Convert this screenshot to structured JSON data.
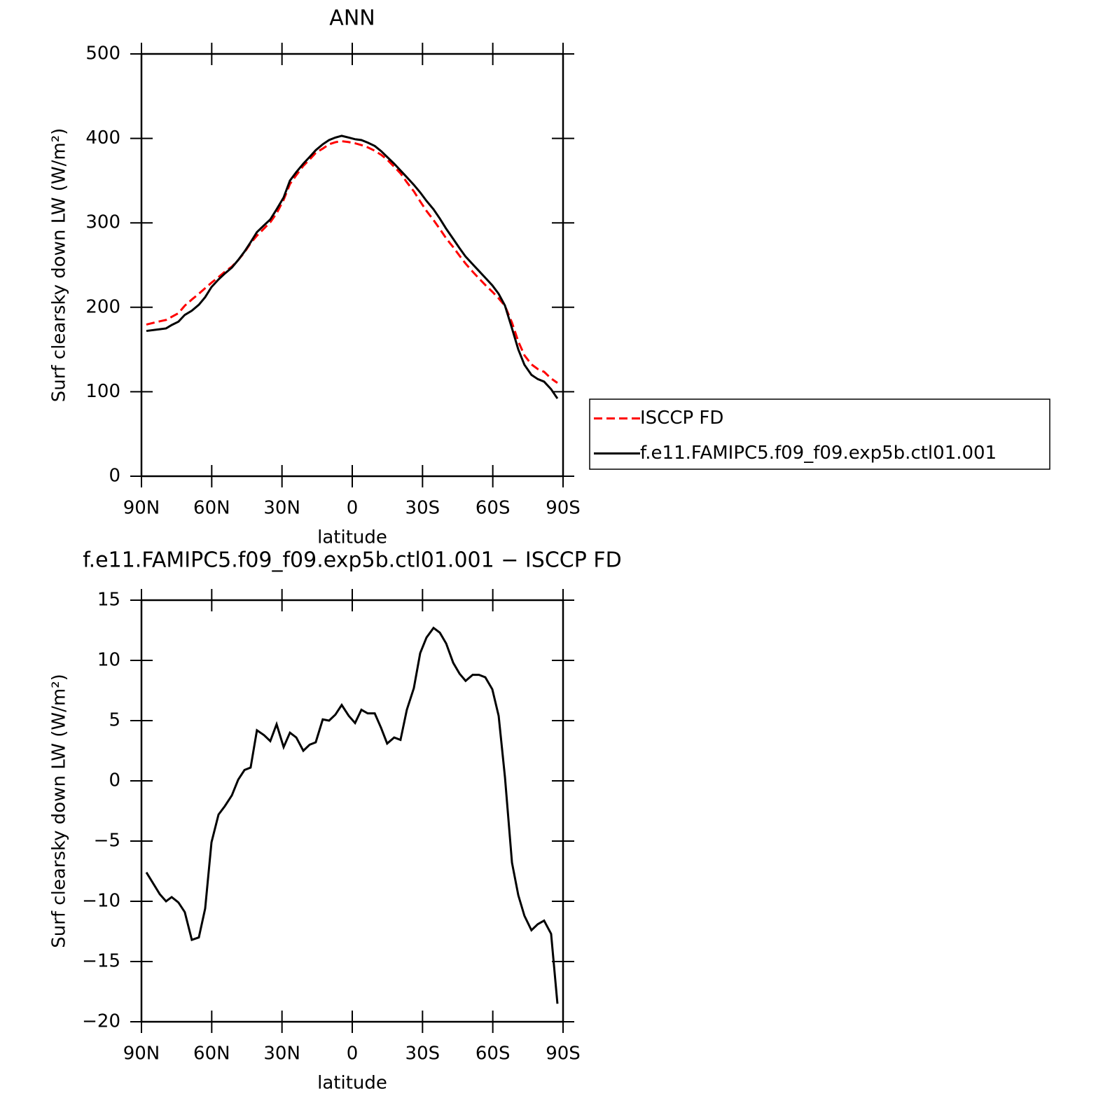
{
  "chart_data": [
    {
      "type": "line",
      "title": "ANN",
      "xlabel": "latitude",
      "ylabel": "Surf clearsky down LW (W/m²)",
      "x": [
        87.9,
        82.2,
        79.5,
        77.1,
        74.2,
        71.5,
        68.5,
        65.5,
        62.8,
        60.1,
        57.1,
        54.4,
        51.4,
        48.7,
        46.0,
        43.4,
        40.7,
        37.7,
        35.0,
        32.3,
        29.3,
        26.6,
        23.9,
        20.9,
        18.2,
        15.6,
        12.6,
        9.9,
        7.2,
        4.5,
        1.5,
        -1.2,
        -3.9,
        -6.6,
        -9.6,
        -12.3,
        -14.9,
        -17.9,
        -20.6,
        -23.3,
        -26.3,
        -29.0,
        -31.7,
        -34.7,
        -37.4,
        -40.1,
        -43.1,
        -45.8,
        -48.4,
        -51.4,
        -54.1,
        -56.8,
        -59.8,
        -62.5,
        -65.2,
        -68.2,
        -70.9,
        -73.5,
        -76.5,
        -79.2,
        -81.9,
        -84.9,
        -87.6
      ],
      "series": [
        {
          "name": "ISCCP FD",
          "color": "#ff0000",
          "dash": true,
          "values": [
            179.6,
            183.4,
            185,
            188.7,
            193.1,
            201.9,
            209.2,
            216,
            222.6,
            229.1,
            235.8,
            242.1,
            248.2,
            255.9,
            265.1,
            275.9,
            284.8,
            293.2,
            300.7,
            311.3,
            327.2,
            346,
            356.4,
            367.5,
            375,
            382.8,
            387.9,
            393,
            395.5,
            396.7,
            395.6,
            394.2,
            392.1,
            389.4,
            385.4,
            380.6,
            374.9,
            366.4,
            358.6,
            348.1,
            337.3,
            325.4,
            314.1,
            303.3,
            292.7,
            281.6,
            271.2,
            261.1,
            251.7,
            242.2,
            234.2,
            226.4,
            218.4,
            210.6,
            201.7,
            181.8,
            159.5,
            143.2,
            132.4,
            126.9,
            123.6,
            115.7,
            110.5
          ]
        },
        {
          "name": "f.e11.FAMIPC5.f09_f09.exp5b.ctl01.001",
          "color": "#000000",
          "dash": false,
          "values": [
            172,
            174,
            175,
            179,
            183,
            191,
            196,
            203,
            212,
            224,
            233,
            240,
            247,
            256,
            266,
            277,
            289,
            297,
            304,
            316,
            330,
            350,
            360,
            370,
            378,
            386,
            393,
            398,
            401,
            403,
            401,
            399,
            398,
            395,
            391,
            385,
            378,
            370,
            362,
            354,
            345,
            336,
            326,
            316,
            305,
            293,
            281,
            270,
            260,
            251,
            243,
            235,
            226,
            216,
            202,
            175,
            150,
            132,
            120,
            115,
            112,
            103,
            92
          ]
        }
      ],
      "xlim": [
        90,
        -90
      ],
      "xticks": [
        {
          "value": 90,
          "label": "90N"
        },
        {
          "value": 60,
          "label": "60N"
        },
        {
          "value": 30,
          "label": "30N"
        },
        0,
        {
          "value": -30,
          "label": "30S"
        },
        {
          "value": -60,
          "label": "60S"
        },
        {
          "value": -90,
          "label": "90S"
        }
      ],
      "ylim": [
        0,
        500
      ],
      "yticks": [
        0,
        100,
        200,
        300,
        400,
        500
      ],
      "legend": "right"
    },
    {
      "type": "line",
      "title": "f.e11.FAMIPC5.f09_f09.exp5b.ctl01.001 − ISCCP FD",
      "xlabel": "latitude",
      "ylabel": "Surf clearsky down LW (W/m²)",
      "x": [
        87.9,
        82.2,
        79.5,
        77.1,
        74.2,
        71.5,
        68.5,
        65.5,
        62.8,
        60.1,
        57.1,
        54.4,
        51.4,
        48.7,
        46.0,
        43.4,
        40.7,
        37.7,
        35.0,
        32.3,
        29.3,
        26.6,
        23.9,
        20.9,
        18.2,
        15.6,
        12.6,
        9.9,
        7.2,
        4.5,
        1.5,
        -1.2,
        -3.9,
        -6.6,
        -9.6,
        -12.3,
        -14.9,
        -17.9,
        -20.6,
        -23.3,
        -26.3,
        -29.0,
        -31.7,
        -34.7,
        -37.4,
        -40.1,
        -43.1,
        -45.8,
        -48.4,
        -51.4,
        -54.1,
        -56.8,
        -59.8,
        -62.5,
        -65.2,
        -68.2,
        -70.9,
        -73.5,
        -76.5,
        -79.2,
        -81.9,
        -84.9,
        -87.6
      ],
      "series": [
        {
          "color": "#000000",
          "dash": false,
          "values": [
            -7.6,
            -9.4,
            -10.0,
            -9.65,
            -10.1,
            -10.9,
            -13.2,
            -13.0,
            -10.6,
            -5.1,
            -2.8,
            -2.1,
            -1.2,
            0.1,
            0.9,
            1.1,
            4.2,
            3.8,
            3.3,
            4.7,
            2.8,
            4.0,
            3.6,
            2.5,
            3.0,
            3.2,
            5.1,
            5.0,
            5.5,
            6.3,
            5.4,
            4.8,
            5.9,
            5.6,
            5.6,
            4.4,
            3.1,
            3.6,
            3.4,
            5.9,
            7.7,
            10.6,
            11.9,
            12.7,
            12.3,
            11.4,
            9.8,
            8.9,
            8.3,
            8.8,
            8.8,
            8.6,
            7.6,
            5.4,
            0.3,
            -6.8,
            -9.5,
            -11.2,
            -12.4,
            -11.9,
            -11.6,
            -12.7,
            -18.5
          ]
        }
      ],
      "xlim": [
        90,
        -90
      ],
      "xticks": [
        {
          "value": 90,
          "label": "90N"
        },
        {
          "value": 60,
          "label": "60N"
        },
        {
          "value": 30,
          "label": "30N"
        },
        0,
        {
          "value": -30,
          "label": "30S"
        },
        {
          "value": -60,
          "label": "60S"
        },
        {
          "value": -90,
          "label": "90S"
        }
      ],
      "ylim": [
        -20,
        15
      ],
      "yticks": [
        {
          "value": -20,
          "label": "−20"
        },
        {
          "value": -15,
          "label": "−15"
        },
        {
          "value": -10,
          "label": "−10"
        },
        {
          "value": -5,
          "label": "−5"
        },
        0,
        5,
        10,
        15
      ]
    }
  ]
}
